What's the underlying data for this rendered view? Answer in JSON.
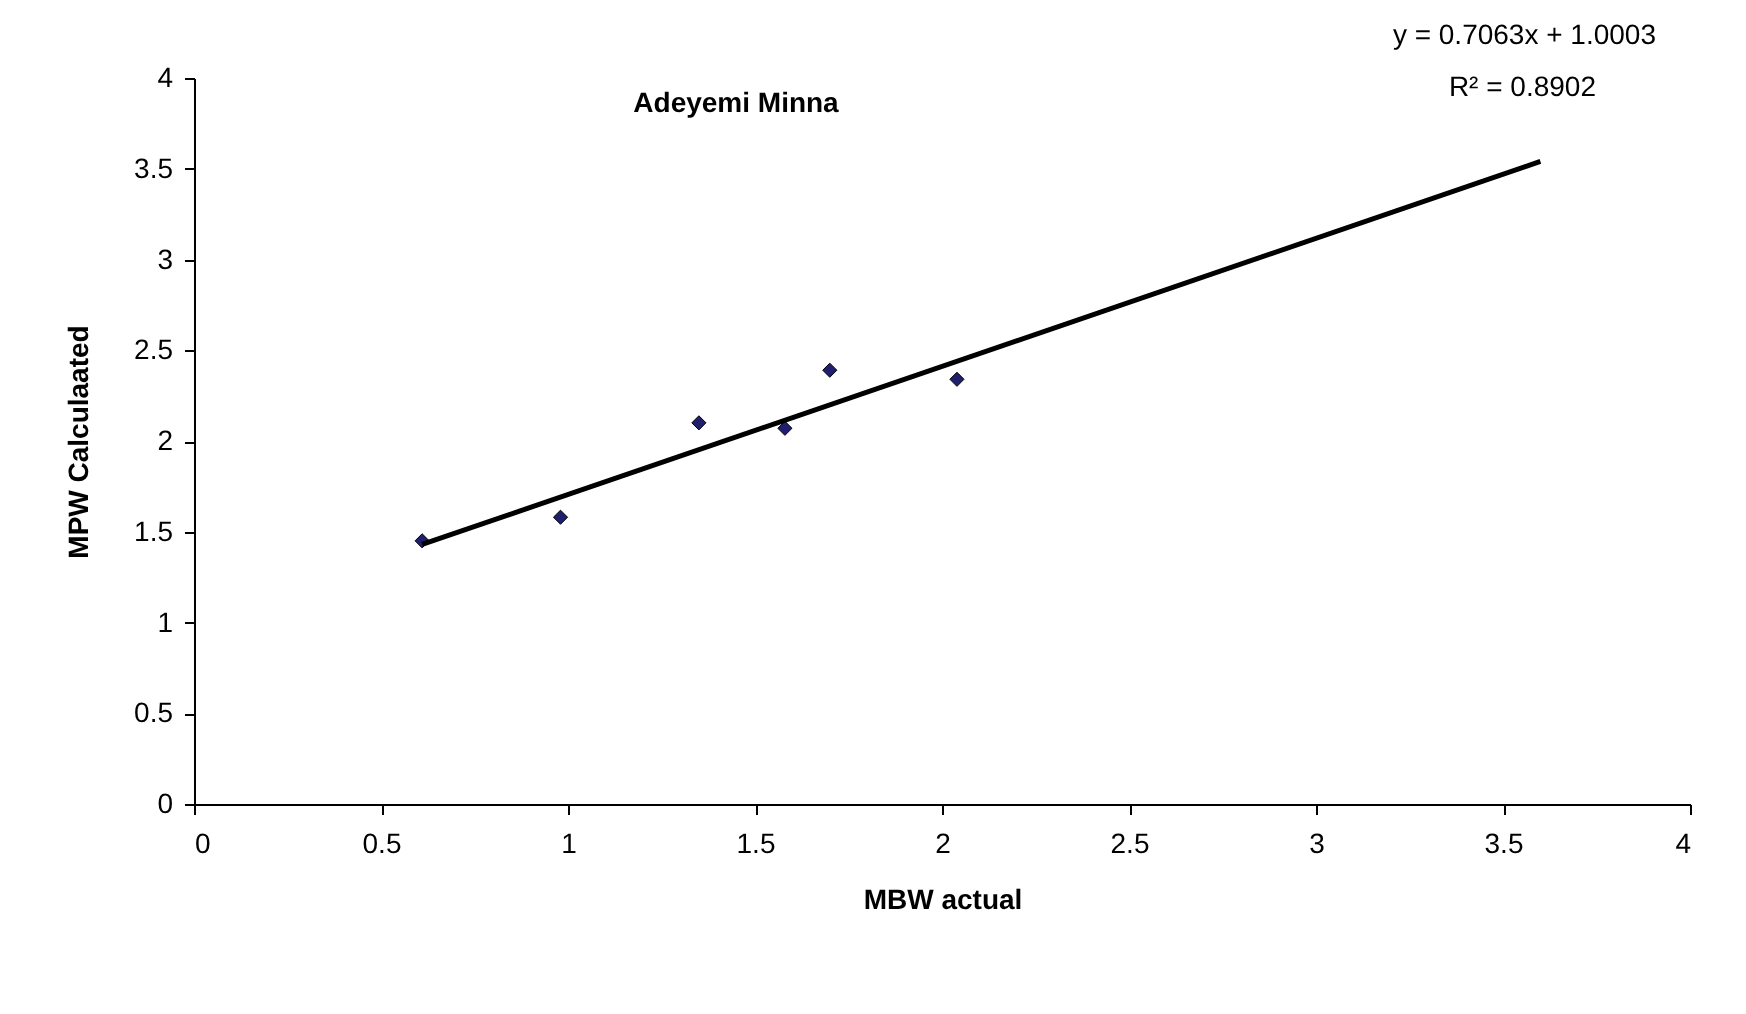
{
  "chart_data": {
    "type": "scatter",
    "title": "Adeyemi Minna",
    "xlabel": "MBW actual",
    "ylabel": "MPW Calculaated",
    "annotations": [
      "y = 0.7063x + 1.0003",
      "R² = 0.8902"
    ],
    "series": [
      {
        "type": "scatter",
        "color": "#1f1f6e",
        "marker": "diamond",
        "x": [
          0.61,
          0.98,
          1.35,
          1.58,
          1.7,
          2.04
        ],
        "values": [
          1.45,
          1.58,
          2.1,
          2.07,
          2.39,
          2.34
        ]
      },
      {
        "type": "line",
        "color": "#000000",
        "marker": "none",
        "x": [
          0.61,
          3.6
        ],
        "values": [
          1.43,
          3.54
        ]
      }
    ],
    "xlim": [
      0,
      4
    ],
    "ylim": [
      0,
      4
    ],
    "xticks": [
      0,
      0.5,
      1,
      1.5,
      2,
      2.5,
      3,
      3.5,
      4
    ],
    "yticks": [
      0,
      0.5,
      1,
      1.5,
      2,
      2.5,
      3,
      3.5,
      4
    ],
    "grid": false
  }
}
